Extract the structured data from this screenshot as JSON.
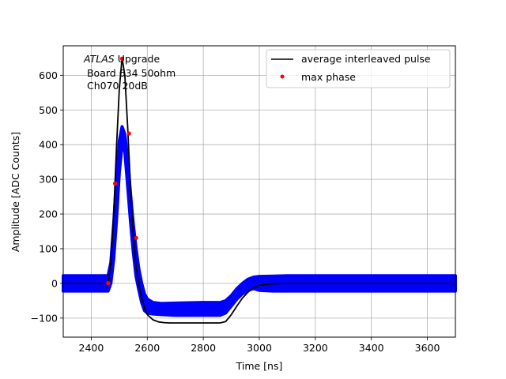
{
  "chart_data": {
    "type": "line",
    "title": "",
    "xlabel": "Time [ns]",
    "ylabel": "Amplitude [ADC Counts]",
    "xlim": [
      2300,
      3700
    ],
    "ylim": [
      -155,
      685
    ],
    "xticks": [
      2400,
      2600,
      2800,
      3000,
      3200,
      3400,
      3600
    ],
    "yticks": [
      -100,
      0,
      100,
      200,
      300,
      400,
      500,
      600
    ],
    "grid": true,
    "legend_position": "top-right",
    "annotation": {
      "italic_part": "ATLAS",
      "rest_line1": " Upgrade",
      "line2": " Board 634 50ohm",
      "line3": " Ch070 20dB"
    },
    "colors": {
      "scatter": "#0000ff",
      "average": "#000000",
      "max_phase": "#ff0000",
      "grid": "#b0b0b0"
    },
    "series": [
      {
        "name": "average interleaved pulse",
        "kind": "line",
        "x": [
          2300,
          2460,
          2470,
          2480,
          2490,
          2500,
          2510,
          2520,
          2530,
          2540,
          2550,
          2560,
          2570,
          2580,
          2590,
          2600,
          2620,
          2640,
          2660,
          2680,
          2700,
          2800,
          2860,
          2880,
          2900,
          2920,
          2940,
          2960,
          2980,
          3000,
          3050,
          3100,
          3700
        ],
        "y": [
          0,
          0,
          60,
          200,
          390,
          560,
          650,
          600,
          450,
          280,
          140,
          50,
          -5,
          -40,
          -70,
          -90,
          -105,
          -111,
          -113,
          -114,
          -114,
          -114,
          -114,
          -110,
          -90,
          -65,
          -42,
          -25,
          -12,
          -5,
          -1,
          0,
          0
        ]
      },
      {
        "name": "",
        "kind": "scatter-band",
        "x": [
          2300,
          2460,
          2470,
          2480,
          2490,
          2500,
          2510,
          2520,
          2530,
          2540,
          2550,
          2560,
          2570,
          2580,
          2590,
          2600,
          2620,
          2650,
          2700,
          2800,
          2860,
          2880,
          2900,
          2920,
          2940,
          2960,
          2980,
          3000,
          3050,
          3100,
          3700
        ],
        "ymax": [
          22,
          22,
          60,
          170,
          300,
          410,
          452,
          430,
          360,
          260,
          170,
          100,
          40,
          0,
          -30,
          -45,
          -55,
          -58,
          -57,
          -55,
          -55,
          -50,
          -35,
          -15,
          0,
          12,
          18,
          20,
          21,
          22,
          22
        ],
        "ymin": [
          -22,
          -22,
          0,
          70,
          180,
          320,
          400,
          380,
          280,
          180,
          90,
          20,
          -20,
          -55,
          -78,
          -85,
          -88,
          -90,
          -92,
          -92,
          -92,
          -85,
          -65,
          -45,
          -30,
          -20,
          -15,
          -20,
          -22,
          -22,
          -22
        ]
      },
      {
        "name": "max phase",
        "kind": "markers",
        "x": [
          2460,
          2485,
          2510,
          2535,
          2560
        ],
        "y": [
          1,
          288,
          648,
          432,
          131
        ]
      }
    ]
  }
}
